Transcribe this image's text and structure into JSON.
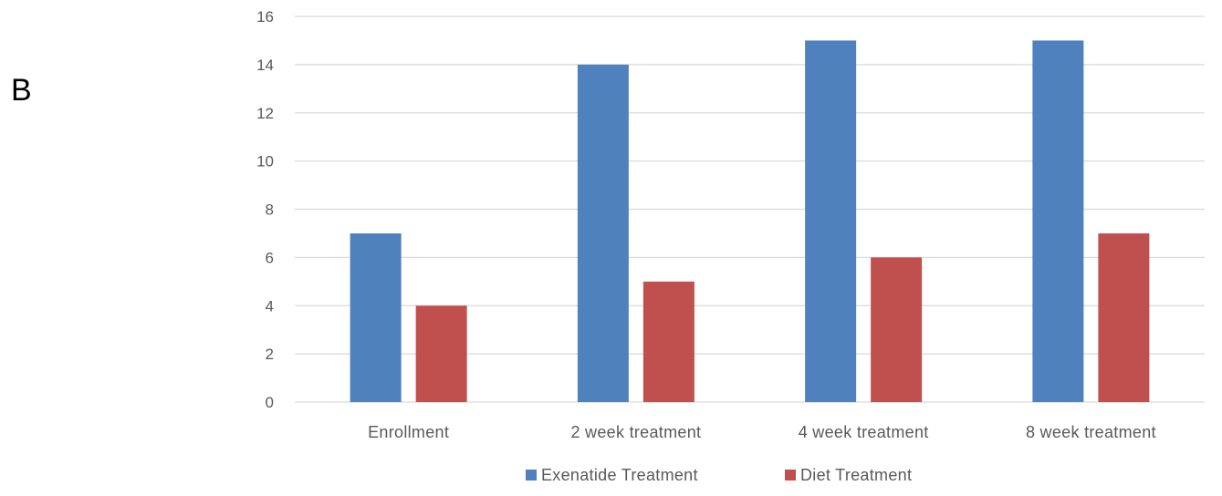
{
  "panel_label": "B",
  "chart_data": {
    "type": "bar",
    "title": "",
    "xlabel": "",
    "ylabel": "",
    "categories": [
      "Enrollment",
      "2 week treatment",
      "4 week treatment",
      "8 week treatment"
    ],
    "series": [
      {
        "name": "Exenatide Treatment",
        "values": [
          7,
          14,
          15,
          15
        ],
        "color": "#4f81bd"
      },
      {
        "name": "Diet Treatment",
        "values": [
          4,
          5,
          6,
          7
        ],
        "color": "#c0504d"
      }
    ],
    "ylim": [
      0,
      16
    ],
    "yticks": [
      0,
      2,
      4,
      6,
      8,
      10,
      12,
      14,
      16
    ],
    "grid": true,
    "legend_position": "bottom"
  }
}
